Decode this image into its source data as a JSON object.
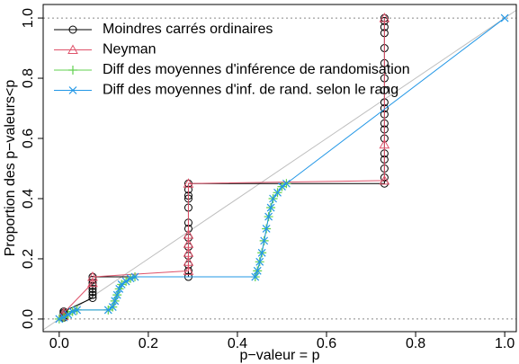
{
  "chart_data": {
    "type": "scatter",
    "x_label": "p−valeur = p",
    "y_label": "Proportion des p−valeurs<p",
    "xlim": [
      -0.036,
      1.026
    ],
    "ylim": [
      -0.042,
      1.045
    ],
    "xticks": [
      {
        "value": 0,
        "label": "0.0"
      },
      0.2,
      0.4,
      0.6,
      0.8,
      {
        "value": 1,
        "label": "1.0"
      }
    ],
    "yticks": [
      {
        "value": 0,
        "label": "0.0"
      },
      0.2,
      0.4,
      0.6,
      0.8,
      {
        "value": 1,
        "label": "1.0"
      }
    ],
    "reference_lines": {
      "h": [
        0,
        1
      ],
      "diagonal": true
    },
    "legend": "top-left",
    "series": [
      {
        "name": "Moindres carrés ordinaires",
        "color": "#000000",
        "marker": "circle",
        "x": [
          0.01,
          0.01,
          0.01,
          0.01,
          0.01,
          0.075,
          0.075,
          0.075,
          0.075,
          0.075,
          0.075,
          0.075,
          0.075,
          0.29,
          0.29,
          0.29,
          0.29,
          0.29,
          0.29,
          0.29,
          0.29,
          0.29,
          0.29,
          0.29,
          0.29,
          0.29,
          0.73,
          0.73,
          0.73,
          0.73,
          0.73,
          0.73,
          0.73,
          0.73,
          0.73,
          0.73,
          0.73,
          0.73,
          0.73,
          0.73,
          0.73,
          0.73,
          0.73,
          0.73,
          0.73
        ],
        "values": [
          0.005,
          0.01,
          0.015,
          0.02,
          0.025,
          0.07,
          0.08,
          0.09,
          0.1,
          0.11,
          0.12,
          0.13,
          0.14,
          0.14,
          0.16,
          0.18,
          0.21,
          0.24,
          0.27,
          0.3,
          0.32,
          0.37,
          0.4,
          0.41,
          0.43,
          0.45,
          0.45,
          0.47,
          0.5,
          0.53,
          0.55,
          0.6,
          0.63,
          0.65,
          0.68,
          0.7,
          0.72,
          0.76,
          0.8,
          0.85,
          0.9,
          0.95,
          0.97,
          0.99,
          1.0
        ]
      },
      {
        "name": "Neyman",
        "color": "#DF536B",
        "marker": "triangle",
        "x": [
          0.01,
          0.01,
          0.075,
          0.075,
          0.29,
          0.29,
          0.29,
          0.29,
          0.29,
          0.29,
          0.73,
          0.73,
          0.73
        ],
        "values": [
          0.01,
          0.02,
          0.12,
          0.14,
          0.16,
          0.19,
          0.22,
          0.25,
          0.28,
          0.45,
          0.46,
          0.58,
          1.0
        ]
      },
      {
        "name": "Diff des moyennes d'inférence de randomisation",
        "color": "#61D04F",
        "marker": "plus",
        "x": [
          0.0,
          0.01,
          0.02,
          0.03,
          0.04,
          0.11,
          0.12,
          0.125,
          0.13,
          0.135,
          0.14,
          0.15,
          0.16,
          0.17,
          0.44,
          0.445,
          0.45,
          0.455,
          0.46,
          0.465,
          0.47,
          0.475,
          0.48,
          0.49,
          0.5,
          0.51,
          1.0
        ],
        "values": [
          0.0,
          0.005,
          0.015,
          0.025,
          0.03,
          0.03,
          0.04,
          0.06,
          0.08,
          0.1,
          0.115,
          0.125,
          0.135,
          0.14,
          0.14,
          0.16,
          0.19,
          0.22,
          0.26,
          0.3,
          0.34,
          0.37,
          0.4,
          0.42,
          0.44,
          0.45,
          null
        ]
      },
      {
        "name": "Diff des moyennes d'inf. de rand. selon le rang",
        "color": "#2297E6",
        "marker": "cross",
        "x": [
          0.0,
          0.01,
          0.02,
          0.03,
          0.04,
          0.11,
          0.12,
          0.125,
          0.13,
          0.135,
          0.14,
          0.15,
          0.16,
          0.17,
          0.44,
          0.445,
          0.45,
          0.455,
          0.46,
          0.465,
          0.47,
          0.475,
          0.48,
          0.49,
          0.5,
          0.51,
          1.0
        ],
        "values": [
          0.0,
          0.005,
          0.015,
          0.025,
          0.03,
          0.03,
          0.04,
          0.06,
          0.08,
          0.1,
          0.115,
          0.125,
          0.135,
          0.14,
          0.14,
          0.16,
          0.19,
          0.22,
          0.26,
          0.3,
          0.34,
          0.37,
          0.4,
          0.42,
          0.44,
          0.45,
          1.0
        ]
      }
    ]
  }
}
